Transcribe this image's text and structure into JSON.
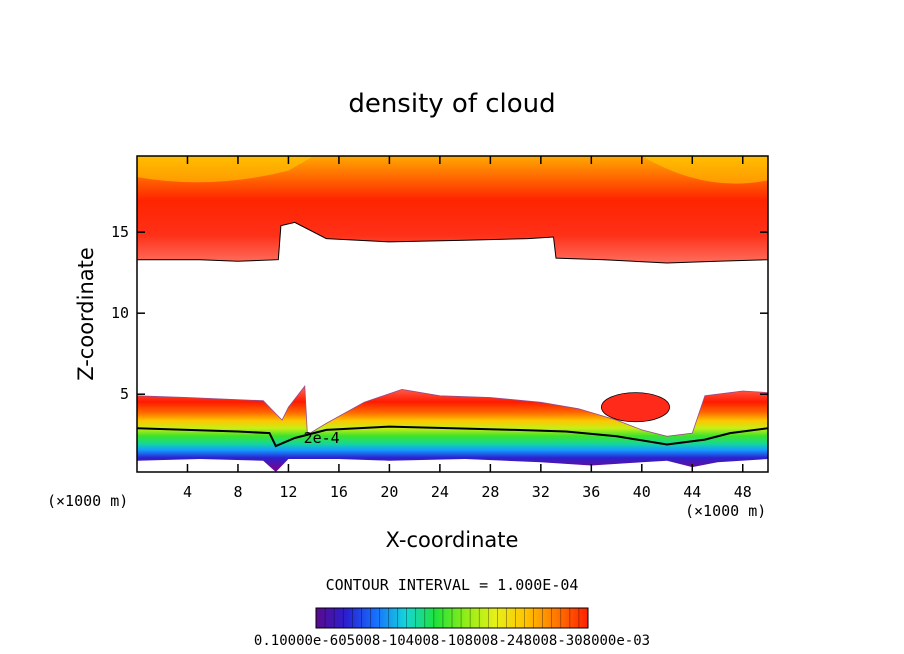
{
  "chart_data": {
    "type": "heatmap",
    "subtype": "filled-contour",
    "title": "density of cloud",
    "xlabel": "X-coordinate",
    "ylabel": "Z-coordinate",
    "x_unit": "(×1000 m)",
    "y_unit": "(×1000 m)",
    "xlim": [
      0,
      50
    ],
    "ylim": [
      0.2,
      19.7
    ],
    "xticks": [
      4,
      8,
      12,
      16,
      20,
      24,
      28,
      32,
      36,
      40,
      44,
      48
    ],
    "yticks": [
      5,
      10,
      15
    ],
    "contour_label": "2e-4",
    "contour_interval_text": "CONTOUR INTERVAL = 1.000E-04",
    "colorbar": {
      "labels_text": "0.10000e-605008-104008-108008-248008-308000e-03",
      "min": 0.0001,
      "max": 0.003,
      "colors": [
        "#5b0a8f",
        "#2a1fd0",
        "#1670ff",
        "#14d6d9",
        "#1fe23a",
        "#8fee18",
        "#e8f018",
        "#ffc400",
        "#ff7a00",
        "#ff2000"
      ]
    },
    "upper_cloud": {
      "base_profile": [
        [
          0,
          13.3
        ],
        [
          5,
          13.3
        ],
        [
          8,
          13.2
        ],
        [
          11.2,
          13.3
        ],
        [
          11.4,
          15.4
        ],
        [
          12.5,
          15.6
        ],
        [
          15,
          14.6
        ],
        [
          20,
          14.4
        ],
        [
          26,
          14.5
        ],
        [
          31,
          14.6
        ],
        [
          33,
          14.7
        ],
        [
          33.2,
          13.4
        ],
        [
          37,
          13.3
        ],
        [
          42,
          13.1
        ],
        [
          46,
          13.2
        ],
        [
          50,
          13.3
        ]
      ],
      "top": 19.7
    },
    "lower_cloud": {
      "top_profile": [
        [
          0,
          4.9
        ],
        [
          4,
          4.8
        ],
        [
          7,
          4.7
        ],
        [
          10,
          4.6
        ],
        [
          11.5,
          3.4
        ],
        [
          12,
          4.2
        ],
        [
          13.3,
          5.5
        ],
        [
          13.5,
          2.5
        ],
        [
          15,
          3.2
        ],
        [
          18,
          4.5
        ],
        [
          21,
          5.3
        ],
        [
          24,
          4.9
        ],
        [
          28,
          4.8
        ],
        [
          32,
          4.5
        ],
        [
          35,
          4.1
        ],
        [
          38,
          3.4
        ],
        [
          40,
          2.8
        ],
        [
          42,
          2.4
        ],
        [
          44,
          2.6
        ],
        [
          45,
          4.9
        ],
        [
          48,
          5.2
        ],
        [
          50,
          5.1
        ]
      ],
      "contour_2e4_profile": [
        [
          0,
          2.9
        ],
        [
          4,
          2.8
        ],
        [
          8,
          2.7
        ],
        [
          10.5,
          2.6
        ],
        [
          11,
          1.8
        ],
        [
          12.5,
          2.3
        ],
        [
          15,
          2.8
        ],
        [
          20,
          3.0
        ],
        [
          25,
          2.9
        ],
        [
          30,
          2.8
        ],
        [
          34,
          2.7
        ],
        [
          38,
          2.4
        ],
        [
          42,
          1.9
        ],
        [
          45,
          2.2
        ],
        [
          47,
          2.6
        ],
        [
          50,
          2.9
        ]
      ],
      "bottom_profile": [
        [
          0,
          0.9
        ],
        [
          5,
          1.0
        ],
        [
          10,
          0.9
        ],
        [
          11,
          0.2
        ],
        [
          12,
          1.0
        ],
        [
          16,
          1.0
        ],
        [
          20,
          0.9
        ],
        [
          26,
          1.0
        ],
        [
          32,
          0.8
        ],
        [
          36,
          0.6
        ],
        [
          40,
          0.8
        ],
        [
          42,
          0.9
        ],
        [
          44,
          0.5
        ],
        [
          46,
          0.8
        ],
        [
          50,
          1.0
        ]
      ]
    },
    "isolated_patch": {
      "cx": 39.5,
      "cz": 4.2,
      "rx": 2.7,
      "rz": 0.9
    }
  }
}
